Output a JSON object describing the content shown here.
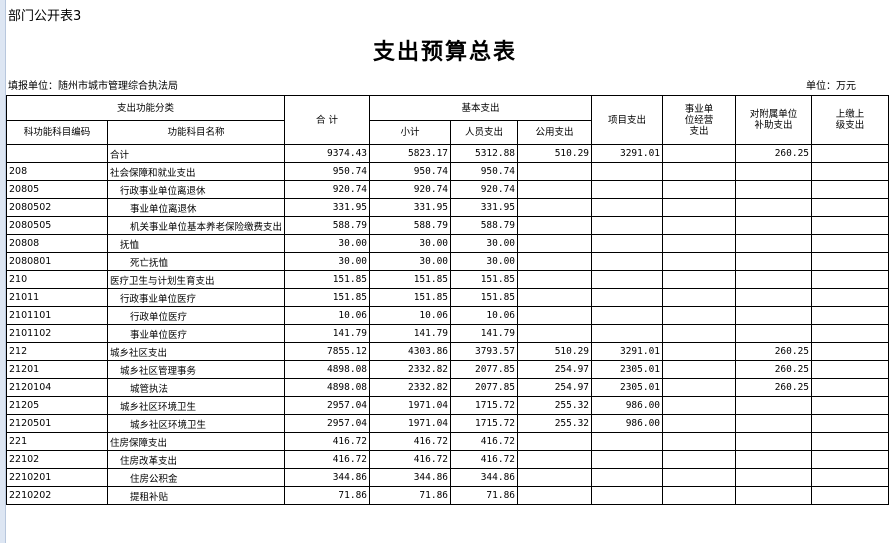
{
  "sheet_label": "部门公开表3",
  "title": "支出预算总表",
  "unit_left": "填报单位：随州市城市管理综合执法局",
  "unit_right": "单位：万元",
  "headers": {
    "category": "支出功能分类",
    "code": "科功能科目编码",
    "name": "功能科目名称",
    "total": "合  计",
    "basic": "基本支出",
    "subtotal": "小计",
    "personnel": "人员支出",
    "public": "公用支出",
    "project": "项目支出",
    "business": "事业单位经营支出",
    "subsidy": "对附属单位补助支出",
    "remit": "上缴上级支出"
  },
  "rows": [
    {
      "code": "",
      "name": "合计",
      "level": 1,
      "total": "9374.43",
      "subtotal": "5823.17",
      "personnel": "5312.88",
      "public": "510.29",
      "project": "3291.01",
      "business": "",
      "subsidy": "260.25",
      "remit": ""
    },
    {
      "code": "208",
      "name": "社会保障和就业支出",
      "level": 1,
      "total": "950.74",
      "subtotal": "950.74",
      "personnel": "950.74",
      "public": "",
      "project": "",
      "business": "",
      "subsidy": "",
      "remit": ""
    },
    {
      "code": "20805",
      "name": "行政事业单位离退休",
      "level": 2,
      "total": "920.74",
      "subtotal": "920.74",
      "personnel": "920.74",
      "public": "",
      "project": "",
      "business": "",
      "subsidy": "",
      "remit": ""
    },
    {
      "code": "2080502",
      "name": "事业单位离退休",
      "level": 3,
      "total": "331.95",
      "subtotal": "331.95",
      "personnel": "331.95",
      "public": "",
      "project": "",
      "business": "",
      "subsidy": "",
      "remit": ""
    },
    {
      "code": "2080505",
      "name": "机关事业单位基本养老保险缴费支出",
      "level": 3,
      "total": "588.79",
      "subtotal": "588.79",
      "personnel": "588.79",
      "public": "",
      "project": "",
      "business": "",
      "subsidy": "",
      "remit": ""
    },
    {
      "code": "20808",
      "name": "抚恤",
      "level": 2,
      "total": "30.00",
      "subtotal": "30.00",
      "personnel": "30.00",
      "public": "",
      "project": "",
      "business": "",
      "subsidy": "",
      "remit": ""
    },
    {
      "code": "2080801",
      "name": "死亡抚恤",
      "level": 3,
      "total": "30.00",
      "subtotal": "30.00",
      "personnel": "30.00",
      "public": "",
      "project": "",
      "business": "",
      "subsidy": "",
      "remit": ""
    },
    {
      "code": "210",
      "name": "医疗卫生与计划生育支出",
      "level": 1,
      "total": "151.85",
      "subtotal": "151.85",
      "personnel": "151.85",
      "public": "",
      "project": "",
      "business": "",
      "subsidy": "",
      "remit": ""
    },
    {
      "code": "21011",
      "name": "行政事业单位医疗",
      "level": 2,
      "total": "151.85",
      "subtotal": "151.85",
      "personnel": "151.85",
      "public": "",
      "project": "",
      "business": "",
      "subsidy": "",
      "remit": ""
    },
    {
      "code": "2101101",
      "name": "行政单位医疗",
      "level": 3,
      "total": "10.06",
      "subtotal": "10.06",
      "personnel": "10.06",
      "public": "",
      "project": "",
      "business": "",
      "subsidy": "",
      "remit": ""
    },
    {
      "code": "2101102",
      "name": "事业单位医疗",
      "level": 3,
      "total": "141.79",
      "subtotal": "141.79",
      "personnel": "141.79",
      "public": "",
      "project": "",
      "business": "",
      "subsidy": "",
      "remit": ""
    },
    {
      "code": "212",
      "name": "城乡社区支出",
      "level": 1,
      "total": "7855.12",
      "subtotal": "4303.86",
      "personnel": "3793.57",
      "public": "510.29",
      "project": "3291.01",
      "business": "",
      "subsidy": "260.25",
      "remit": ""
    },
    {
      "code": "21201",
      "name": "城乡社区管理事务",
      "level": 2,
      "total": "4898.08",
      "subtotal": "2332.82",
      "personnel": "2077.85",
      "public": "254.97",
      "project": "2305.01",
      "business": "",
      "subsidy": "260.25",
      "remit": ""
    },
    {
      "code": "2120104",
      "name": "城管执法",
      "level": 3,
      "total": "4898.08",
      "subtotal": "2332.82",
      "personnel": "2077.85",
      "public": "254.97",
      "project": "2305.01",
      "business": "",
      "subsidy": "260.25",
      "remit": ""
    },
    {
      "code": "21205",
      "name": "城乡社区环境卫生",
      "level": 2,
      "total": "2957.04",
      "subtotal": "1971.04",
      "personnel": "1715.72",
      "public": "255.32",
      "project": "986.00",
      "business": "",
      "subsidy": "",
      "remit": ""
    },
    {
      "code": "2120501",
      "name": "城乡社区环境卫生",
      "level": 3,
      "total": "2957.04",
      "subtotal": "1971.04",
      "personnel": "1715.72",
      "public": "255.32",
      "project": "986.00",
      "business": "",
      "subsidy": "",
      "remit": ""
    },
    {
      "code": "221",
      "name": "住房保障支出",
      "level": 1,
      "total": "416.72",
      "subtotal": "416.72",
      "personnel": "416.72",
      "public": "",
      "project": "",
      "business": "",
      "subsidy": "",
      "remit": ""
    },
    {
      "code": "22102",
      "name": "住房改革支出",
      "level": 2,
      "total": "416.72",
      "subtotal": "416.72",
      "personnel": "416.72",
      "public": "",
      "project": "",
      "business": "",
      "subsidy": "",
      "remit": ""
    },
    {
      "code": "2210201",
      "name": "住房公积金",
      "level": 3,
      "total": "344.86",
      "subtotal": "344.86",
      "personnel": "344.86",
      "public": "",
      "project": "",
      "business": "",
      "subsidy": "",
      "remit": ""
    },
    {
      "code": "2210202",
      "name": "提租补贴",
      "level": 3,
      "total": "71.86",
      "subtotal": "71.86",
      "personnel": "71.86",
      "public": "",
      "project": "",
      "business": "",
      "subsidy": "",
      "remit": ""
    }
  ]
}
